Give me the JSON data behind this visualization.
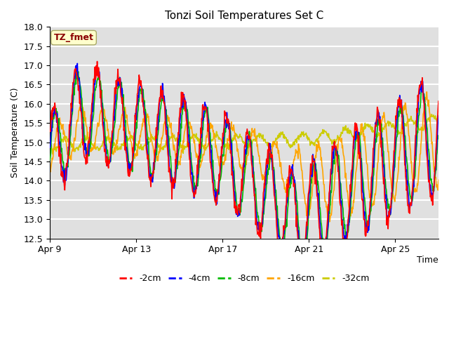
{
  "title": "Tonzi Soil Temperatures Set C",
  "xlabel": "Time",
  "ylabel": "Soil Temperature (C)",
  "annotation": "TZ_fmet",
  "annotation_color": "#8B0000",
  "annotation_bg": "#FFFFCC",
  "ylim": [
    12.5,
    18.0
  ],
  "yticks": [
    12.5,
    13.0,
    13.5,
    14.0,
    14.5,
    15.0,
    15.5,
    16.0,
    16.5,
    17.0,
    17.5,
    18.0
  ],
  "xtick_labels": [
    "Apr 9",
    "Apr 13",
    "Apr 17",
    "Apr 21",
    "Apr 25"
  ],
  "xtick_positions": [
    0,
    4,
    8,
    12,
    16
  ],
  "colors": {
    "-2cm": "#FF0000",
    "-4cm": "#0000FF",
    "-8cm": "#00BB00",
    "-16cm": "#FFA500",
    "-32cm": "#CCCC00"
  },
  "legend_labels": [
    "-2cm",
    "-4cm",
    "-8cm",
    "-16cm",
    "-32cm"
  ],
  "bg_color": "#E0E0E0",
  "grid_color": "#FFFFFF",
  "line_width": 1.2,
  "n_days": 18
}
